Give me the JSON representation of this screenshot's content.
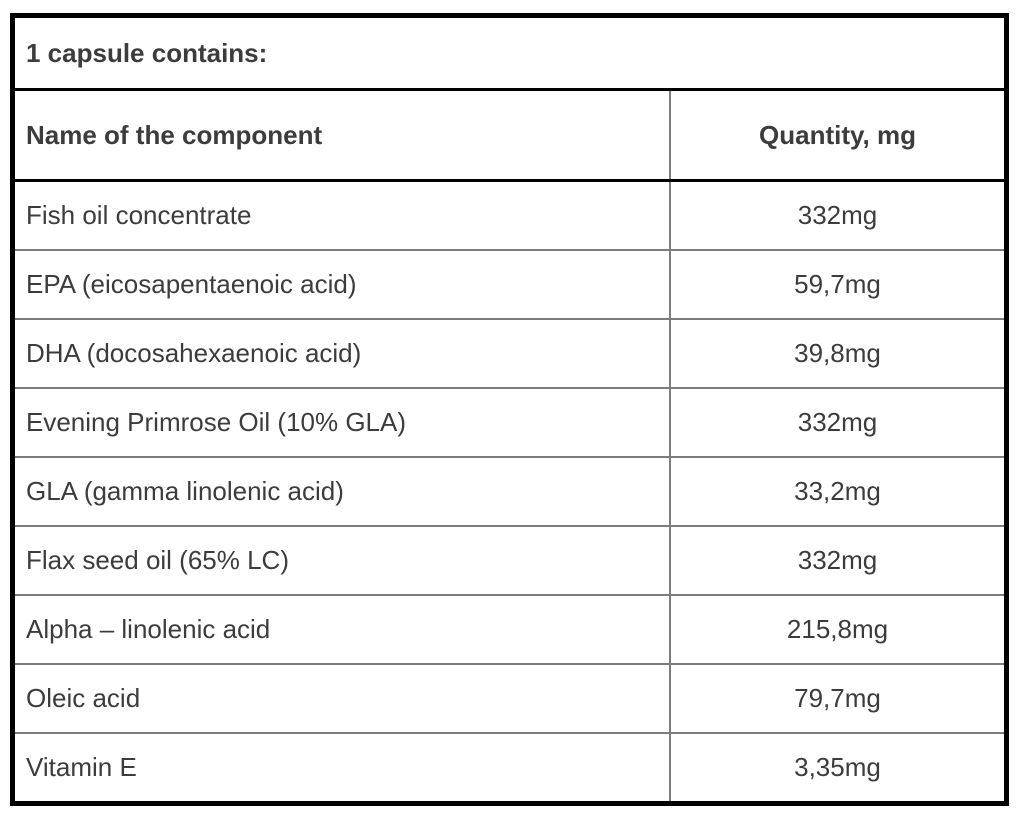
{
  "table": {
    "title": "1 capsule contains:",
    "columns": [
      "Name of the component",
      "Quantity, mg"
    ],
    "rows": [
      {
        "name": "Fish oil concentrate",
        "quantity": "332mg"
      },
      {
        "name": "EPA (eicosapentaenoic acid)",
        "quantity": "59,7mg"
      },
      {
        "name": "DHA (docosahexaenoic acid)",
        "quantity": "39,8mg"
      },
      {
        "name": "Evening Primrose Oil (10% GLA)",
        "quantity": "332mg"
      },
      {
        "name": "GLA (gamma linolenic acid)",
        "quantity": "33,2mg"
      },
      {
        "name": "Flax seed oil (65% LC)",
        "quantity": "332mg"
      },
      {
        "name": "Alpha – linolenic acid",
        "quantity": "215,8mg"
      },
      {
        "name": "Oleic acid",
        "quantity": "79,7mg"
      },
      {
        "name": "Vitamin E",
        "quantity": "3,35mg"
      }
    ]
  }
}
